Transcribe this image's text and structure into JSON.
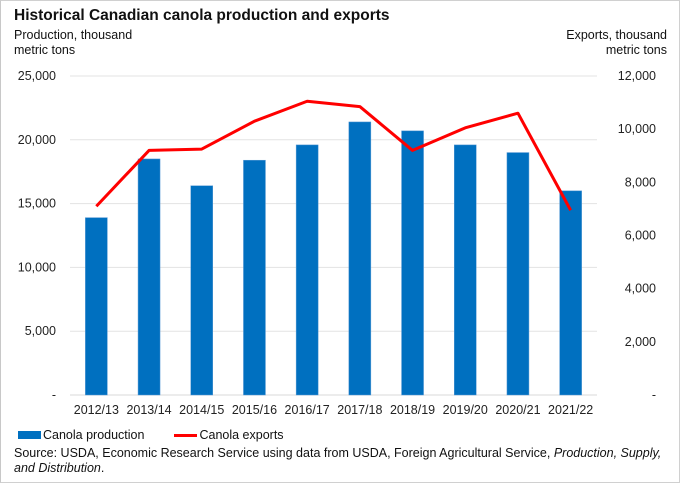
{
  "chart_data": {
    "type": "bar",
    "title": "Historical Canadian canola production and exports",
    "ylabel": "Production, thousand metric tons",
    "ylabel_right": "Exports, thousand metric tons",
    "xlabel": "",
    "categories": [
      "2012/13",
      "2013/14",
      "2014/15",
      "2015/16",
      "2016/17",
      "2017/18",
      "2018/19",
      "2019/20",
      "2020/21",
      "2021/22"
    ],
    "ylim": [
      0,
      25000
    ],
    "ylim_right": [
      0,
      12000
    ],
    "yticks": [
      "-",
      "5,000",
      "10,000",
      "15,000",
      "20,000",
      "25,000"
    ],
    "yticks_right": [
      "-",
      "2,000",
      "4,000",
      "6,000",
      "8,000",
      "10,000",
      "12,000"
    ],
    "grid": true,
    "legend_position": "bottom-left",
    "series": [
      {
        "name": "Canola production",
        "type": "bar",
        "axis": "left",
        "color": "#0070c0",
        "values": [
          13900,
          18500,
          16400,
          18400,
          19600,
          21400,
          20700,
          19600,
          19000,
          16000
        ]
      },
      {
        "name": "Canola exports",
        "type": "line",
        "axis": "right",
        "color": "#ff0000",
        "values": [
          7100,
          9200,
          9250,
          10300,
          11050,
          10850,
          9200,
          10050,
          10600,
          6950
        ]
      }
    ]
  },
  "source": {
    "prefix": "Source: USDA, Economic Research Service using data from USDA, Foreign Agricultural Service, ",
    "italic": "Production, Supply, and Distribution",
    "suffix": "."
  }
}
